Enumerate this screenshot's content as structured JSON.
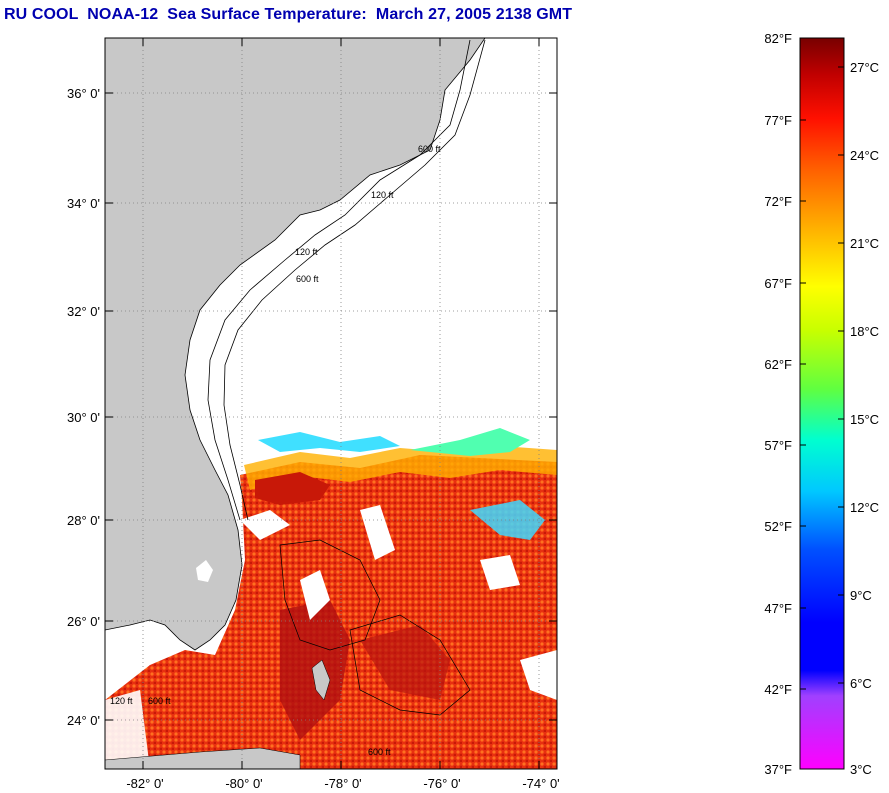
{
  "title": "RU COOL  NOAA-12  Sea Surface Temperature:  March 27, 2005 2138 GMT",
  "map": {
    "lat_labels": [
      "36° 0'",
      "34° 0'",
      "32° 0'",
      "30° 0'",
      "28° 0'",
      "26° 0'",
      "24° 0'"
    ],
    "lon_labels": [
      "-82° 0'",
      "-80° 0'",
      "-78° 0'",
      "-76° 0'",
      "-74° 0'"
    ],
    "contour_labels": [
      "120 ft",
      "600 ft"
    ],
    "colors": {
      "land": "#c8c8c8",
      "cloud": "#ffffff",
      "warm_water": "#ef3010",
      "gulf_stream": "#d42000"
    }
  },
  "colorbar": {
    "fahrenheit_labels": [
      "82°F",
      "77°F",
      "72°F",
      "67°F",
      "62°F",
      "57°F",
      "52°F",
      "47°F",
      "42°F",
      "37°F"
    ],
    "celsius_labels": [
      "27°C",
      "24°C",
      "21°C",
      "18°C",
      "15°C",
      "12°C",
      "9°C",
      "6°C",
      "3°C"
    ]
  }
}
